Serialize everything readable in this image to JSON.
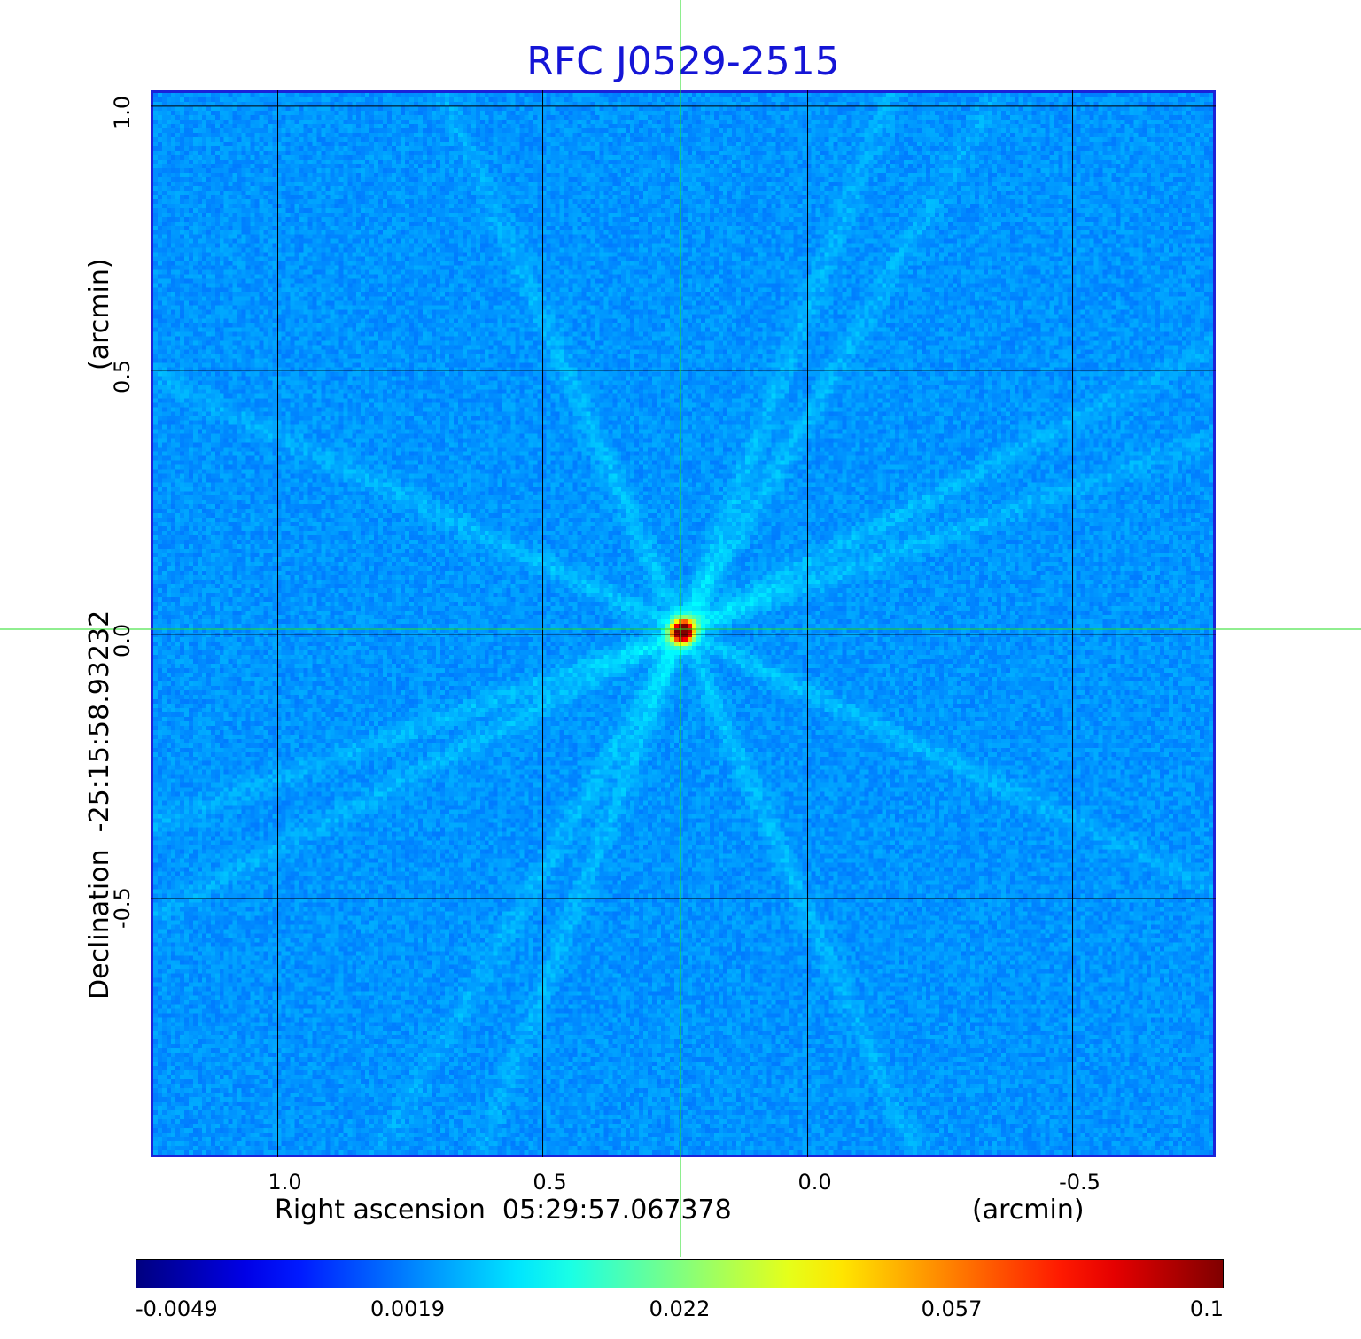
{
  "chart_data": {
    "type": "heatmap",
    "title": "RFC J0529-2515",
    "xlabel": {
      "text": "Right ascension  05:29:57.067378",
      "unit": "(arcmin)"
    },
    "ylabel": {
      "text": "Declination  -25:15:58.93232",
      "unit": "(arcmin)"
    },
    "x_axis": {
      "reversed": true,
      "range": [
        1.24,
        -0.77
      ],
      "ticks": [
        1.0,
        0.5,
        0.0,
        -0.5
      ],
      "tick_labels": [
        "1.0",
        "0.5",
        "0.0",
        "-0.5"
      ]
    },
    "y_axis": {
      "range": [
        -0.99,
        1.03
      ],
      "ticks": [
        1.0,
        0.5,
        0.0,
        -0.5
      ],
      "tick_labels": [
        "1.0",
        "0.5",
        "0.0",
        "-0.5"
      ]
    },
    "grid": true,
    "crosshair": {
      "ra_offset": 0.24,
      "dec_offset": 0.01,
      "color": "#22dd22"
    },
    "source_peak": {
      "ra_offset": 0.24,
      "dec_offset": 0.01,
      "value": 0.1
    },
    "colormap": "jet",
    "colorbar": {
      "orientation": "horizontal",
      "position": "bottom",
      "ticks": [
        "-0.0049",
        "0.0019",
        "0.022",
        "0.057",
        "0.1"
      ]
    },
    "background_value": 0.0
  }
}
